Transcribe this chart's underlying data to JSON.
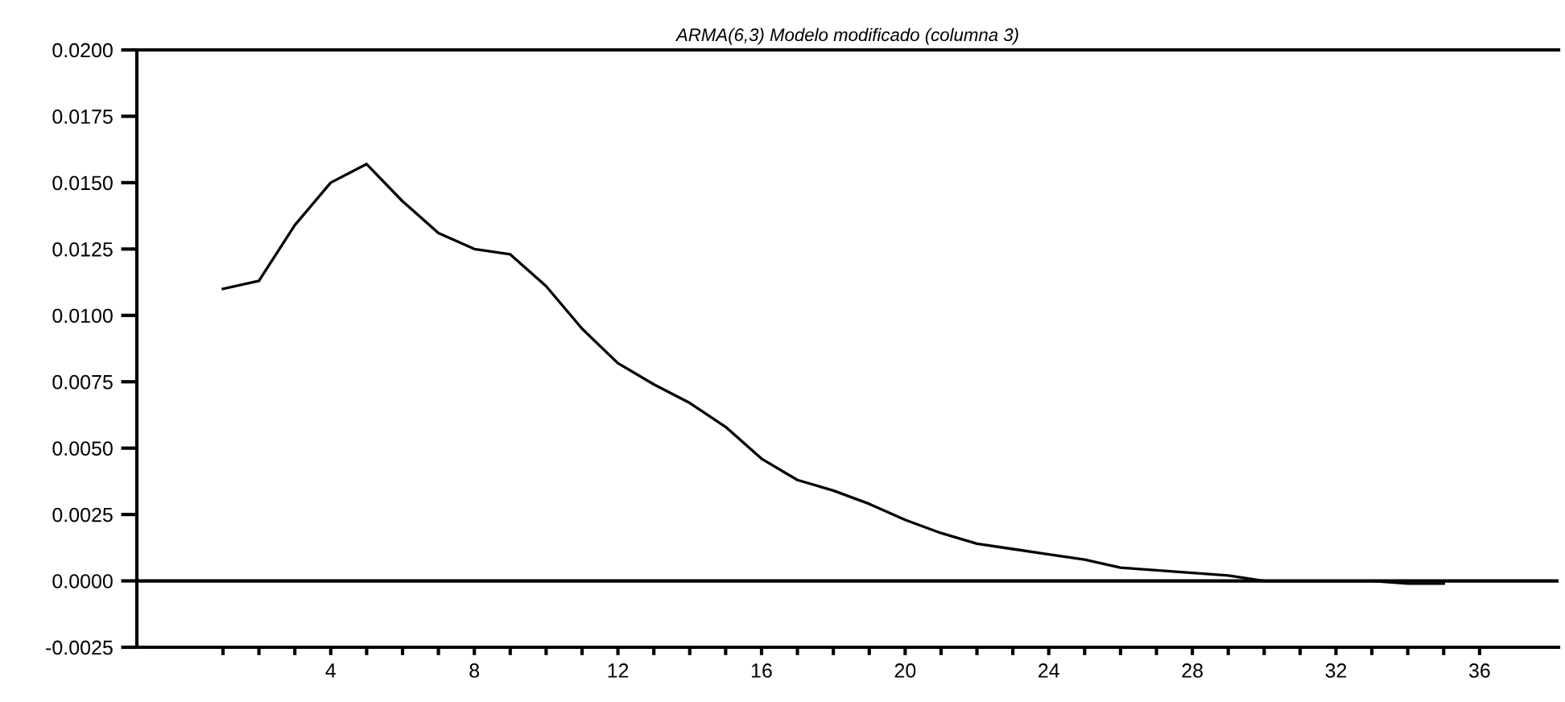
{
  "chart_data": {
    "type": "line",
    "title": "ARMA(6,3) Modelo modificado (columna 3)",
    "x": [
      1,
      2,
      3,
      4,
      5,
      6,
      7,
      8,
      9,
      10,
      11,
      12,
      13,
      14,
      15,
      16,
      17,
      18,
      19,
      20,
      21,
      22,
      23,
      24,
      25,
      26,
      27,
      28,
      29,
      30,
      31,
      32,
      33,
      34,
      35
    ],
    "series": [
      {
        "color": "#000000",
        "values": [
          0.011,
          0.0113,
          0.0134,
          0.015,
          0.0157,
          0.0143,
          0.0131,
          0.0125,
          0.0123,
          0.0111,
          0.0095,
          0.0082,
          0.0074,
          0.0067,
          0.0058,
          0.0046,
          0.0038,
          0.0034,
          0.0029,
          0.0023,
          0.0018,
          0.0014,
          0.0012,
          0.001,
          0.0008,
          0.0005,
          0.0004,
          0.0003,
          0.0002,
          0.0,
          0.0,
          0.0,
          0.0,
          -0.0001,
          -0.0001
        ]
      }
    ],
    "xlim": [
      -1.4,
      38.2
    ],
    "ylim": [
      -0.0025,
      0.02
    ],
    "xticks": [
      {
        "value": 1,
        "label": null
      },
      {
        "value": 2,
        "label": null
      },
      {
        "value": 3,
        "label": null
      },
      4,
      {
        "value": 5,
        "label": null
      },
      {
        "value": 6,
        "label": null
      },
      {
        "value": 7,
        "label": null
      },
      8,
      {
        "value": 9,
        "label": null
      },
      {
        "value": 10,
        "label": null
      },
      {
        "value": 11,
        "label": null
      },
      12,
      {
        "value": 13,
        "label": null
      },
      {
        "value": 14,
        "label": null
      },
      {
        "value": 15,
        "label": null
      },
      16,
      {
        "value": 17,
        "label": null
      },
      {
        "value": 18,
        "label": null
      },
      {
        "value": 19,
        "label": null
      },
      20,
      {
        "value": 21,
        "label": null
      },
      {
        "value": 22,
        "label": null
      },
      {
        "value": 23,
        "label": null
      },
      24,
      {
        "value": 25,
        "label": null
      },
      {
        "value": 26,
        "label": null
      },
      {
        "value": 27,
        "label": null
      },
      28,
      {
        "value": 29,
        "label": null
      },
      {
        "value": 30,
        "label": null
      },
      {
        "value": 31,
        "label": null
      },
      32,
      {
        "value": 33,
        "label": null
      },
      {
        "value": 34,
        "label": null
      },
      {
        "value": 35,
        "label": null
      },
      36
    ],
    "yticks": [
      {
        "value": -0.0025,
        "label": "-0.0025"
      },
      {
        "value": 0.0,
        "label": "0.0000"
      },
      {
        "value": 0.0025,
        "label": "0.0025"
      },
      {
        "value": 0.005,
        "label": "0.0050"
      },
      {
        "value": 0.0075,
        "label": "0.0075"
      },
      {
        "value": 0.01,
        "label": "0.0100"
      },
      {
        "value": 0.0125,
        "label": "0.0125"
      },
      {
        "value": 0.015,
        "label": "0.0150"
      },
      {
        "value": 0.0175,
        "label": "0.0175"
      },
      {
        "value": 0.02,
        "label": "0.0200"
      }
    ],
    "ref_lines": [
      {
        "axis": "y",
        "value": 0,
        "color": "#000000"
      }
    ],
    "grid": false,
    "legend": false,
    "marker": "none",
    "line_style": "solid"
  }
}
